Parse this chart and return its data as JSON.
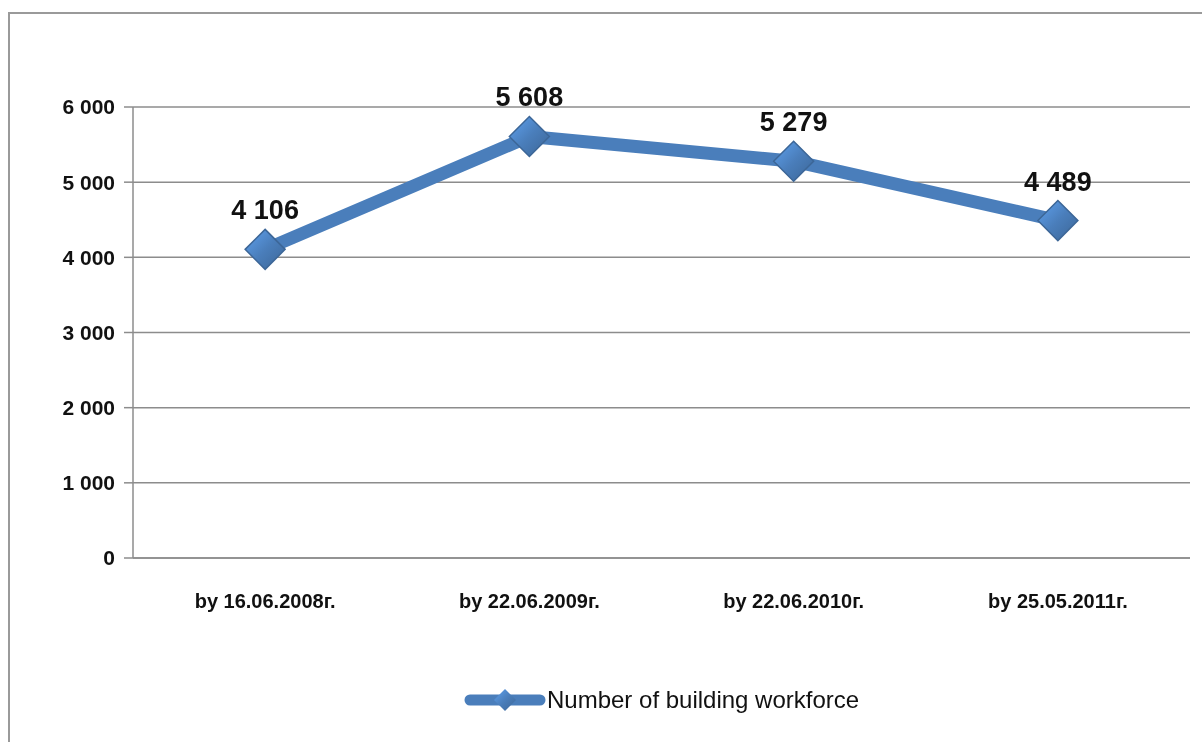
{
  "chart_data": {
    "type": "line",
    "categories": [
      "by 16.06.2008г.",
      "by 22.06.2009г.",
      "by 22.06.2010г.",
      "by 25.05.2011г."
    ],
    "series": [
      {
        "name": "Number of building workforce",
        "color": "#4a7ebb",
        "values": [
          4106,
          5608,
          5279,
          4489
        ],
        "value_labels": [
          "4 106",
          "5 608",
          "5 279",
          "4 489"
        ]
      }
    ],
    "ylim": [
      0,
      6000
    ],
    "yticks": [
      {
        "value": 0,
        "label": "0"
      },
      {
        "value": 1000,
        "label": "1 000"
      },
      {
        "value": 2000,
        "label": "2 000"
      },
      {
        "value": 3000,
        "label": "3 000"
      },
      {
        "value": 4000,
        "label": "4 000"
      },
      {
        "value": 5000,
        "label": "5 000"
      },
      {
        "value": 6000,
        "label": "6 000"
      }
    ],
    "grid": "y",
    "legend": "bottom",
    "marker": "diamond",
    "line_style": "solid"
  }
}
